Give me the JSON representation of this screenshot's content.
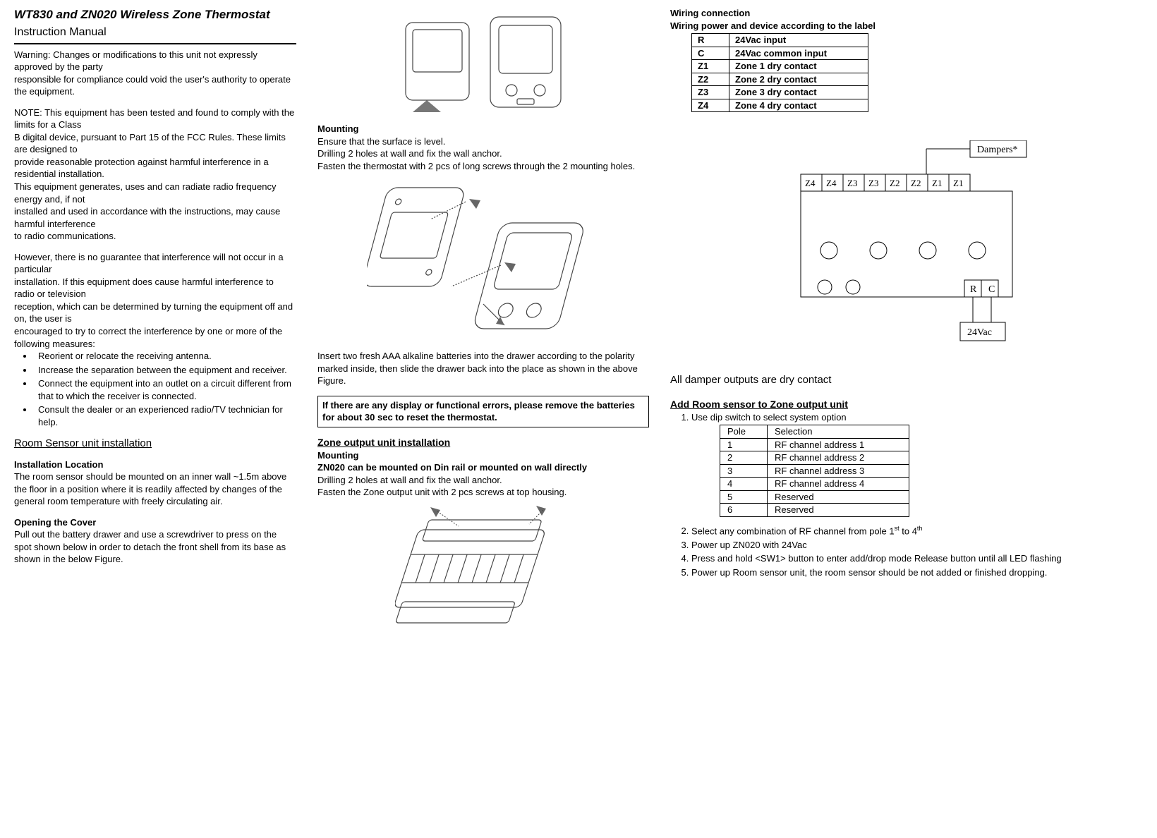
{
  "header": {
    "title": "WT830 and ZN020 Wireless Zone Thermostat",
    "subtitle": "Instruction Manual"
  },
  "col1": {
    "warning_p1": "Warning:   Changes or modifications to this unit not expressly approved by the party",
    "warning_p2": "responsible for compliance could void the user's authority to operate the equipment.",
    "note_p1": "NOTE:   This equipment has been tested and found to comply with the limits for a Class",
    "note_p2": "B digital device, pursuant to Part 15 of the FCC Rules. These limits are designed to",
    "note_p3": "provide reasonable protection against harmful interference in a residential installation.",
    "note_p4": "This equipment generates, uses and can radiate radio frequency energy and, if not",
    "note_p5": "installed and used in accordance with the instructions, may cause harmful interference",
    "note_p6": "to radio communications.",
    "however_p1": "However, there is no guarantee that interference will not occur in a particular",
    "however_p2": "installation.   If this equipment does cause harmful interference to radio or television",
    "however_p3": "reception, which can be determined by turning the equipment off and on, the user is",
    "however_p4": "encouraged to try to correct the interference by one or more of the following measures:",
    "bullets": [
      "Reorient or relocate the receiving antenna.",
      "Increase the separation between the equipment and receiver.",
      "Connect the equipment into an outlet on a circuit different from that to which the receiver is connected.",
      "Consult the dealer or an experienced radio/TV technician for help."
    ],
    "room_sensor_h": "Room Sensor unit installation",
    "install_loc_h": "Installation Location",
    "install_loc_p": "The room sensor should be mounted on an inner wall ~1.5m above the floor in a position where it is readily affected by changes of the general room temperature with freely circulating air.",
    "opening_h": "Opening the Cover",
    "opening_p": "Pull out the battery drawer and use a screwdriver to press on the spot shown below in order to detach the front shell from its base as shown in the below Figure."
  },
  "col2": {
    "mounting_h": "Mounting",
    "mounting_l1": "Ensure that the surface is level.",
    "mounting_l2": "Drilling 2 holes at wall and fix the wall anchor.",
    "mounting_l3": "Fasten the thermostat with 2 pcs of long screws through the 2 mounting holes.",
    "battery_p": "Insert two fresh AAA alkaline batteries into the drawer according to the polarity marked inside, then slide the drawer back into the place as shown in the above Figure.",
    "boxnote": "If there are any display or functional errors, please remove the batteries for about 30 sec to reset the thermostat.",
    "zone_h": "Zone output unit installation",
    "zmount_h": "Mounting",
    "zmount_l1": "ZN020 can be mounted on Din rail or mounted on wall directly",
    "zmount_l2": "Drilling 2 holes at wall and fix the wall anchor.",
    "zmount_l3": "Fasten the Zone output unit with 2 pcs screws at top housing."
  },
  "col3": {
    "wiring_h1": "Wiring connection",
    "wiring_h2": "Wiring power and device according to the label",
    "wiring_rows": [
      [
        "R",
        "24Vac input"
      ],
      [
        "C",
        "24Vac common input"
      ],
      [
        "Z1",
        "Zone 1 dry contact"
      ],
      [
        "Z2",
        "Zone 2 dry contact"
      ],
      [
        "Z3",
        "Zone 3 dry contact"
      ],
      [
        "Z4",
        "Zone 4 dry contact"
      ]
    ],
    "diagram": {
      "dampers_label": "Dampers*",
      "terminals": [
        "Z4",
        "Z4",
        "Z3",
        "Z3",
        "Z2",
        "Z2",
        "Z1",
        "Z1"
      ],
      "rc": [
        "R",
        "C"
      ],
      "power_label": "24Vac"
    },
    "dry_contact": "All damper outputs are dry contact",
    "addroom_h": "Add Room sensor to Zone output unit   ",
    "step1": "Use dip switch to select system option",
    "dip_header": [
      "Pole",
      "Selection"
    ],
    "dip_rows": [
      [
        "1",
        "RF channel address 1"
      ],
      [
        "2",
        "RF channel address 2"
      ],
      [
        "3",
        "RF channel address 3"
      ],
      [
        "4",
        "RF channel address 4"
      ],
      [
        "5",
        "Reserved"
      ],
      [
        "6",
        "Reserved"
      ]
    ],
    "step2_a": "Select any combination of RF channel from pole 1",
    "step2_b": " to 4",
    "step3": "Power up ZN020 with 24Vac",
    "step4": "Press and hold <SW1> button to enter add/drop mode Release button until all LED flashing",
    "step5": "Power up Room sensor unit, the room sensor should be not added or finished dropping."
  }
}
